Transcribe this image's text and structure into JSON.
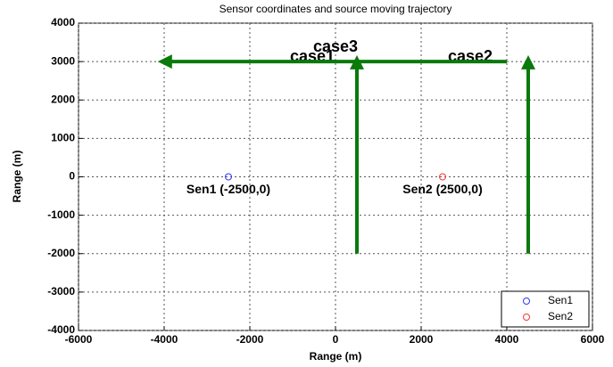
{
  "chart_data": {
    "type": "scatter",
    "title": "Sensor coordinates and source moving trajectory",
    "xlabel": "Range (m)",
    "ylabel": "Range (m)",
    "xlim": [
      -6000,
      6000
    ],
    "ylim": [
      -4000,
      4000
    ],
    "xticks": [
      -6000,
      -4000,
      -2000,
      0,
      2000,
      4000,
      6000
    ],
    "yticks": [
      -4000,
      -3000,
      -2000,
      -1000,
      0,
      1000,
      2000,
      3000,
      4000
    ],
    "grid": true,
    "legend": "lower right",
    "series": [
      {
        "name": "Sen1",
        "color": "#3333ff",
        "x": [
          -2500
        ],
        "values": [
          0
        ],
        "label": "Sen1 (-2500,0)"
      },
      {
        "name": "Sen2",
        "color": "#ff3333",
        "x": [
          2500
        ],
        "values": [
          0
        ],
        "label": "Sen2 (2500,0)"
      }
    ],
    "arrows": [
      {
        "label": "case1",
        "color": "#0a7a0a",
        "from": [
          500,
          -2000
        ],
        "to": [
          500,
          3000
        ]
      },
      {
        "label": "case2",
        "color": "#0a7a0a",
        "from": [
          4500,
          -2000
        ],
        "to": [
          4500,
          3000
        ]
      },
      {
        "label": "case3",
        "color": "#0a7a0a",
        "from": [
          4000,
          3000
        ],
        "to": [
          -4000,
          3000
        ]
      }
    ]
  }
}
